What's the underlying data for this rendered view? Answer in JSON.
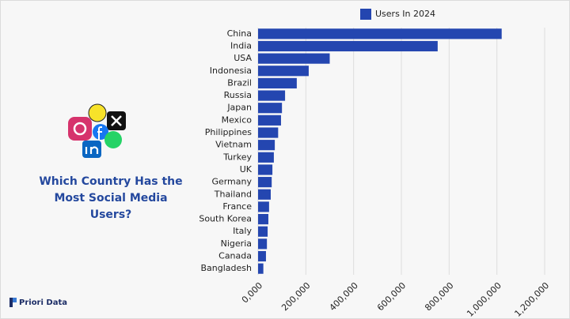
{
  "chart_data": {
    "type": "hbar",
    "title": "Which Country Has the Most Social Media Users?",
    "categories": [
      "China",
      "India",
      "USA",
      "Indonesia",
      "Brazil",
      "Russia",
      "Japan",
      "Mexico",
      "Philippines",
      "Vietnam",
      "Turkey",
      "UK",
      "Germany",
      "Thailand",
      "France",
      "South Korea",
      "Italy",
      "Nigeria",
      "Canada",
      "Bangladesh"
    ],
    "series": [
      {
        "name": "Users In 2024",
        "color": "#2446b0",
        "values": [
          1020000,
          752000,
          300000,
          212000,
          162000,
          113000,
          100000,
          96000,
          84000,
          70000,
          66000,
          60000,
          57000,
          53000,
          46000,
          43000,
          40000,
          37000,
          33000,
          22000
        ]
      }
    ],
    "xlim": [
      0,
      1200000
    ],
    "xticks": [
      {
        "value": 0,
        "label": "0,000"
      },
      {
        "value": 200000,
        "label": "200,000"
      },
      {
        "value": 400000,
        "label": "400,000"
      },
      {
        "value": 600000,
        "label": "600,000"
      },
      {
        "value": 800000,
        "label": "800,000"
      },
      {
        "value": 1000000,
        "label": "1,000,000"
      },
      {
        "value": 1200000,
        "label": "1,200,000"
      }
    ],
    "grid": true,
    "legend": "top"
  },
  "brand": "Priori Data"
}
